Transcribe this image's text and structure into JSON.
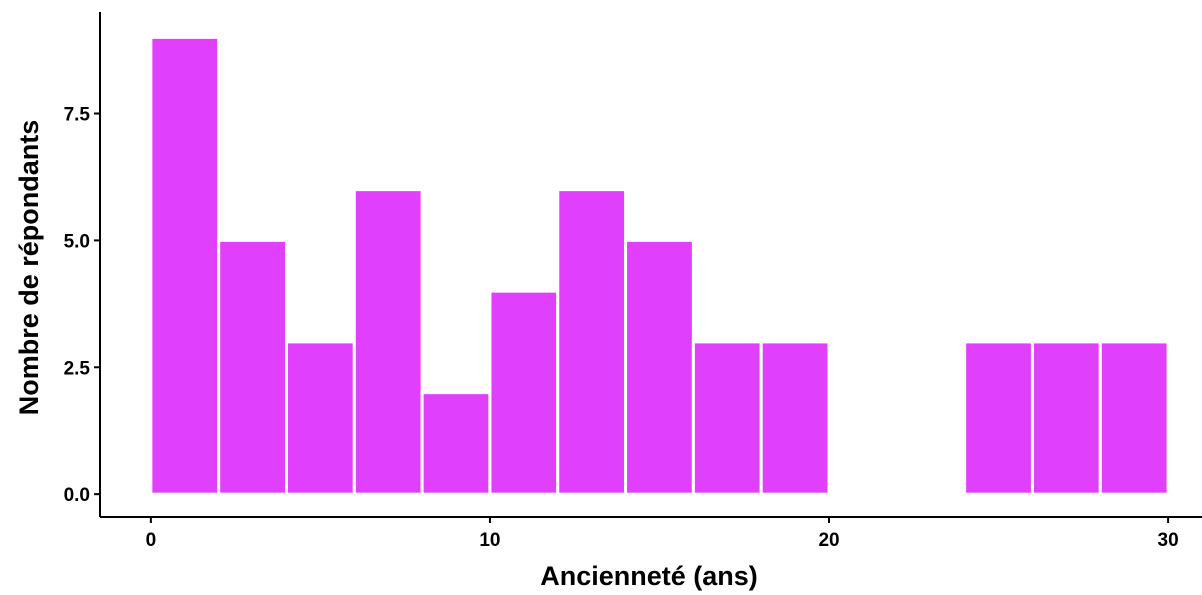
{
  "chart_data": {
    "type": "bar",
    "subtype": "histogram",
    "bar_color": "#e040fb",
    "bar_outline_color": "#ffffff",
    "bin_width": 2,
    "bins": [
      {
        "x0": 0,
        "x1": 2,
        "count": 9
      },
      {
        "x0": 2,
        "x1": 4,
        "count": 5
      },
      {
        "x0": 4,
        "x1": 6,
        "count": 3
      },
      {
        "x0": 6,
        "x1": 8,
        "count": 6
      },
      {
        "x0": 8,
        "x1": 10,
        "count": 2
      },
      {
        "x0": 10,
        "x1": 12,
        "count": 4
      },
      {
        "x0": 12,
        "x1": 14,
        "count": 6
      },
      {
        "x0": 14,
        "x1": 16,
        "count": 5
      },
      {
        "x0": 16,
        "x1": 18,
        "count": 3
      },
      {
        "x0": 18,
        "x1": 20,
        "count": 3
      },
      {
        "x0": 24,
        "x1": 26,
        "count": 3
      },
      {
        "x0": 26,
        "x1": 28,
        "count": 3
      },
      {
        "x0": 28,
        "x1": 30,
        "count": 3
      }
    ],
    "xlabel": "Ancienneté (ans)",
    "ylabel": "Nombre de répondants",
    "xlim": [
      -1.5,
      31
    ],
    "ylim": [
      -0.45,
      9.5
    ],
    "x_ticks": [
      0,
      10,
      20,
      30
    ],
    "x_tick_labels": [
      "0",
      "10",
      "20",
      "30"
    ],
    "y_ticks": [
      0,
      2.5,
      5,
      7.5
    ],
    "y_tick_labels": [
      "0.0",
      "2.5",
      "5.0",
      "7.5"
    ],
    "grid": false,
    "legend": "none"
  }
}
